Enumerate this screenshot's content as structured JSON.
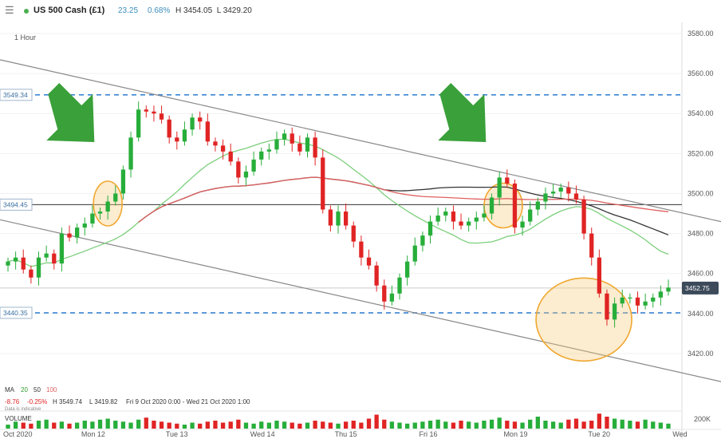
{
  "header": {
    "symbol": "US 500 Cash (£1)",
    "change": "23.25",
    "change_pct": "0.68%",
    "high": "H 3454.05",
    "low": "L 3429.20",
    "menu_icon": "hamburger-menu-icon"
  },
  "timeframe": "1 Hour",
  "colors": {
    "up": "#27ae3a",
    "down": "#e02424",
    "ma20": "#7ccf7c",
    "ma50": "#333333",
    "ma100": "#e06060",
    "dashed": "#3a86d4",
    "trend": "#888888",
    "arrow": "#3aa03a",
    "circle_fill": "rgba(247,200,120,0.35)",
    "circle_stroke": "#f0a830",
    "price_tag_bg": "#3c4a5a"
  },
  "ma_legend": {
    "label": "MA",
    "p20": "20",
    "p50": "50",
    "p100": "100"
  },
  "info_line": {
    "change": "-8.76",
    "change_pct": "-0.25%",
    "high": "H 3549.74",
    "low": "L 3419.82",
    "range": "Fri 9 Oct 2020 0:00 - Wed 21 Oct 2020 1:00",
    "note": "Data is indicative"
  },
  "volume": {
    "label": "VOLUME",
    "axis_label": "200K"
  },
  "price_tags": {
    "upper_level": "3549.34",
    "mid_level": "3494.45",
    "lower_level": "3440.35",
    "current": "3452.75"
  },
  "chart_data": {
    "type": "candlestick",
    "interval": "1 Hour",
    "ylim": [
      3406,
      3584
    ],
    "y_ticks": [
      3420.0,
      3440.0,
      3460.0,
      3480.0,
      3500.0,
      3520.0,
      3540.0,
      3560.0,
      3580.0
    ],
    "y_tick_labels": [
      "3420.00",
      "3440.00",
      "3460.00",
      "3480.00",
      "3500.00",
      "3520.00",
      "3540.00",
      "3560.00",
      "3580.00"
    ],
    "x_labels": [
      {
        "label": "Oct 2020",
        "i": 0
      },
      {
        "label": "Mon 12",
        "i": 11
      },
      {
        "label": "Tue 13",
        "i": 22
      },
      {
        "label": "Wed 14",
        "i": 33
      },
      {
        "label": "Thu 15",
        "i": 44
      },
      {
        "label": "Fri 16",
        "i": 55
      },
      {
        "label": "Mon 19",
        "i": 66
      },
      {
        "label": "Tue 20",
        "i": 77
      },
      {
        "label": "Wed",
        "i": 88
      }
    ],
    "closes": [
      3466,
      3468,
      3462,
      3458,
      3468,
      3470,
      3465,
      3480,
      3478,
      3483,
      3485,
      3490,
      3491,
      3496,
      3500,
      3512,
      3528,
      3542,
      3541,
      3540,
      3537,
      3528,
      3526,
      3532,
      3538,
      3536,
      3526,
      3524,
      3521,
      3516,
      3508,
      3511,
      3517,
      3521,
      3522,
      3527,
      3530,
      3525,
      3521,
      3528,
      3518,
      3492,
      3484,
      3491,
      3484,
      3476,
      3468,
      3464,
      3454,
      3446,
      3450,
      3458,
      3466,
      3474,
      3479,
      3486,
      3489,
      3491,
      3486,
      3484,
      3486,
      3488,
      3490,
      3498,
      3508,
      3505,
      3483,
      3486,
      3492,
      3496,
      3500,
      3501,
      3503,
      3500,
      3497,
      3480,
      3468,
      3450,
      3437,
      3445,
      3448,
      3448,
      3444,
      3446,
      3448,
      3451,
      3453
    ],
    "volume_values": [
      20,
      35,
      30,
      25,
      40,
      45,
      30,
      35,
      25,
      30,
      40,
      35,
      45,
      50,
      40,
      35,
      30,
      45,
      55,
      40,
      35,
      30,
      25,
      20,
      30,
      25,
      35,
      40,
      30,
      35,
      45,
      30,
      25,
      35,
      30,
      40,
      35,
      30,
      25,
      30,
      40,
      35,
      30,
      25,
      35,
      40,
      30,
      50,
      70,
      45,
      35,
      30,
      25,
      30,
      35,
      40,
      45,
      35,
      30,
      40,
      35,
      30,
      40,
      45,
      55,
      40,
      35,
      30,
      45,
      60,
      40,
      35,
      30,
      45,
      50,
      35,
      40,
      75,
      60,
      50,
      45,
      40,
      35,
      45,
      35,
      30,
      25
    ],
    "ma_periods": [
      20,
      50,
      100
    ],
    "horizontal_levels": [
      3549.34,
      3494.45,
      3440.35
    ],
    "current_price": 3452.75,
    "trendlines": [
      {
        "from": {
          "i": 0,
          "y": 3566
        },
        "to": {
          "i": 87,
          "y": 3491
        }
      },
      {
        "from": {
          "i": 0,
          "y": 3486
        },
        "to": {
          "i": 87,
          "y": 3411
        }
      }
    ],
    "highlight_circles": [
      {
        "i": 13,
        "y": 3495
      },
      {
        "i": 64.5,
        "y": 3494
      },
      {
        "i": 75,
        "y": 3437
      }
    ],
    "arrows": [
      {
        "i": 10
      },
      {
        "i": 61
      }
    ]
  }
}
